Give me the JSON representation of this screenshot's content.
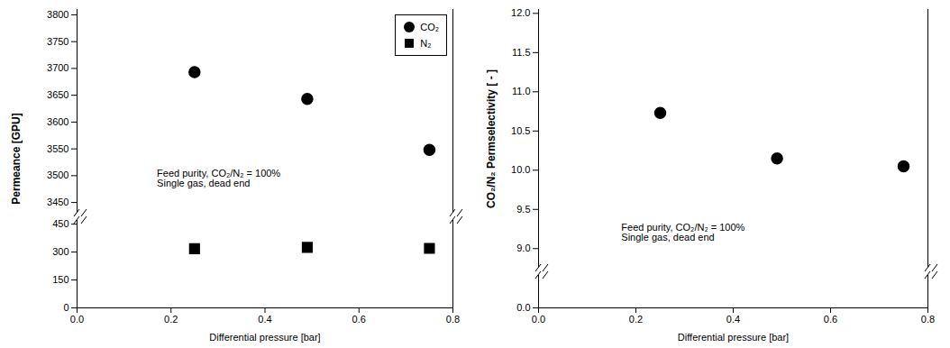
{
  "chart_data": [
    {
      "type": "scatter",
      "xlim": [
        0.0,
        0.8
      ],
      "ylim": [
        3430,
        3810
      ],
      "yticks": [
        3450,
        3500,
        3550,
        3600,
        3650,
        3700,
        3750,
        3800
      ],
      "tick_labels": "y",
      "ylabel": "Permeance [GPU]",
      "legend": "upper right",
      "x": [
        0.25,
        0.49,
        0.75
      ],
      "series": [
        {
          "name": "CO₂",
          "color": "black",
          "marker": "circle",
          "values": [
            3693,
            3643,
            3548
          ]
        }
      ],
      "annotations": [
        {
          "text": "Feed purity, CO₂/N₂ = 100%\nSingle gas, dead end",
          "x": 0.17,
          "y": 3480
        }
      ]
    },
    {
      "type": "scatter",
      "xlim": [
        0.0,
        0.8
      ],
      "ylim": [
        0,
        470
      ],
      "yticks": [
        0,
        150,
        300,
        450
      ],
      "xticks": [
        {
          "value": 0.0,
          "label": "0.0"
        },
        0.2,
        0.4,
        0.6,
        0.8
      ],
      "xlabel": "Differential pressure [bar]",
      "x": [
        0.25,
        0.49,
        0.75
      ],
      "series": [
        {
          "name": "N₂",
          "color": "black",
          "marker": "square",
          "values": [
            318,
            325,
            320
          ]
        }
      ]
    },
    {
      "type": "scatter",
      "xlim": [
        0.0,
        0.8
      ],
      "ylim": [
        8.75,
        12.05
      ],
      "yticks": [
        {
          "value": 9.0,
          "label": "9.0"
        },
        9.5,
        {
          "value": 10.0,
          "label": "10.0"
        },
        10.5,
        {
          "value": 11.0,
          "label": "11.0"
        },
        11.5,
        {
          "value": 12.0,
          "label": "12.0"
        }
      ],
      "tick_labels": "y",
      "ylabel": "CO₂/N₂ Permselectivity [ - ]",
      "x": [
        0.25,
        0.49,
        0.75
      ],
      "values": [
        10.73,
        10.15,
        10.05
      ],
      "color": "black",
      "marker": "circle",
      "annotations": [
        {
          "text": "Feed purity, CO₂/N₂ = 100%\nSingle gas, dead end",
          "x": 0.17,
          "y": 9.1
        }
      ]
    },
    {
      "type": "scatter",
      "xlim": [
        0.0,
        0.8
      ],
      "ylim": [
        0.0,
        0.3
      ],
      "yticks": [
        {
          "value": 0.0,
          "label": "0.0"
        }
      ],
      "xticks": [
        {
          "value": 0.0,
          "label": "0.0"
        },
        0.2,
        0.4,
        0.6,
        0.8
      ],
      "xlabel": "Differential pressure [bar]"
    }
  ]
}
